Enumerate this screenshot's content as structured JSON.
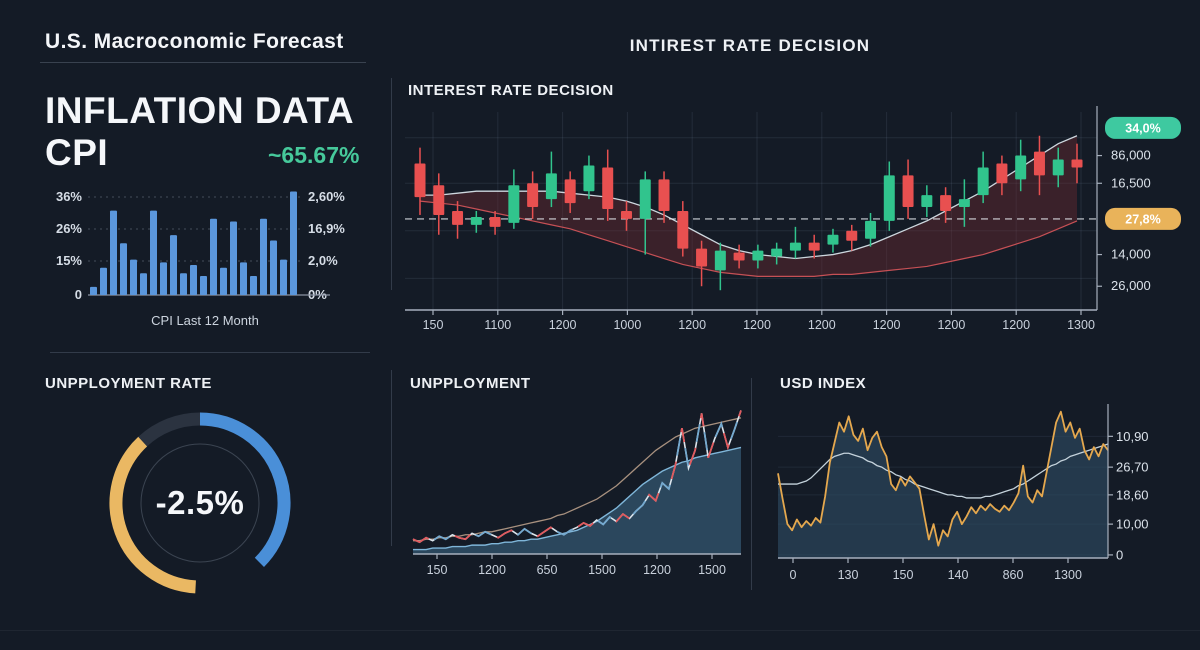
{
  "app": {
    "title": "U.S. Macroconomic Forecast",
    "top_center_title": "INTIREST RATE DECISION"
  },
  "inflation_panel": {
    "heading_line1": "INFLATION DATA",
    "heading_line2": "CPI",
    "highlight_value": "~65.67%"
  },
  "gauge_panel": {
    "title": "UNPPLOYMENT RATE",
    "center_value": "-2.5%",
    "segments": [
      {
        "name": "blue",
        "color": "#4a8fd8",
        "start_deg": 0,
        "end_deg": 135
      },
      {
        "name": "yellow",
        "color": "#eab863",
        "start_deg": 183,
        "end_deg": 317
      },
      {
        "name": "dark",
        "color": "#2b3340",
        "start_deg": 317,
        "end_deg": 360
      }
    ],
    "inner_ring_color": "#3b4451"
  },
  "colors": {
    "background": "#141b26",
    "accent_teal": "#46c99b",
    "bar_blue": "#5b97dc",
    "candle_up": "#31c48d",
    "candle_down": "#e85050",
    "badge_green": "#3ec9a0",
    "badge_orange": "#e9b35a",
    "usd_orange": "#e5a84e",
    "divider": "#323b49"
  },
  "chart_data": [
    {
      "id": "cpi_bars",
      "type": "bar",
      "title": "INFLATION DATA CPI",
      "xlabel": "CPI Last 12 Month",
      "left_ticks": [
        "36%",
        "26%",
        "15%",
        "0"
      ],
      "right_ticks": [
        "2,60%",
        "16,9%",
        "2,0%",
        "0%"
      ],
      "values": [
        3,
        10,
        31,
        19,
        13,
        8,
        31,
        12,
        22,
        8,
        11,
        7,
        28,
        10,
        27,
        12,
        7,
        28,
        20,
        13,
        38
      ],
      "ymax": 36,
      "bar_color": "#5b97dc",
      "grid": "dotted"
    },
    {
      "id": "interest_rate_candles",
      "type": "candlestick",
      "title": "INTEREST RATE DECISION",
      "x_ticks": [
        "150",
        "1100",
        "1200",
        "1000",
        "1200",
        "1200",
        "1200",
        "1200",
        "1200",
        "1200",
        "1300"
      ],
      "right_axis_labels": [
        {
          "text": "86,000",
          "value": 78
        },
        {
          "text": "16,500",
          "value": 64
        },
        {
          "text": "14,000",
          "value": 28
        },
        {
          "text": "26,000",
          "value": 12
        }
      ],
      "badges": [
        {
          "text": "34,0%",
          "value": 92,
          "color": "#3ec9a0"
        },
        {
          "text": "27,8%",
          "value": 46,
          "color": "#e9b35a"
        }
      ],
      "dashed_line_value": 46,
      "up_color": "#31c48d",
      "down_color": "#e85050",
      "band_fill": "rgba(120,45,50,0.38)",
      "band_upper_color": "#cdd7de",
      "band_lower_color": "#c65055",
      "candles": [
        [
          74,
          82,
          48,
          57
        ],
        [
          63,
          69,
          38,
          48
        ],
        [
          50,
          55,
          36,
          43
        ],
        [
          43,
          50,
          39,
          47
        ],
        [
          47,
          50,
          38,
          42
        ],
        [
          44,
          71,
          41,
          63
        ],
        [
          64,
          70,
          46,
          52
        ],
        [
          56,
          80,
          52,
          69
        ],
        [
          66,
          70,
          49,
          54
        ],
        [
          60,
          78,
          56,
          73
        ],
        [
          72,
          81,
          45,
          51
        ],
        [
          50,
          55,
          40,
          46
        ],
        [
          46,
          70,
          28,
          66
        ],
        [
          66,
          70,
          44,
          50
        ],
        [
          50,
          55,
          27,
          31
        ],
        [
          31,
          35,
          12,
          22
        ],
        [
          20,
          34,
          10,
          30
        ],
        [
          29,
          33,
          21,
          25
        ],
        [
          25,
          33,
          21,
          30
        ],
        [
          27,
          34,
          23,
          31
        ],
        [
          30,
          42,
          26,
          34
        ],
        [
          34,
          38,
          26,
          30
        ],
        [
          33,
          41,
          29,
          38
        ],
        [
          40,
          43,
          30,
          35
        ],
        [
          36,
          49,
          32,
          45
        ],
        [
          45,
          75,
          40,
          68
        ],
        [
          68,
          76,
          46,
          52
        ],
        [
          52,
          63,
          47,
          58
        ],
        [
          58,
          62,
          44,
          50
        ],
        [
          52,
          66,
          42,
          56
        ],
        [
          58,
          80,
          54,
          72
        ],
        [
          74,
          78,
          58,
          64
        ],
        [
          66,
          86,
          60,
          78
        ],
        [
          80,
          88,
          58,
          68
        ],
        [
          68,
          82,
          62,
          76
        ],
        [
          76,
          84,
          64,
          72
        ]
      ],
      "band_upper": [
        58,
        58,
        59,
        60,
        60,
        60,
        60,
        60,
        59,
        58,
        57,
        55,
        52,
        48,
        43,
        38,
        33,
        30,
        28,
        27,
        26,
        27,
        28,
        30,
        33,
        37,
        41,
        45,
        50,
        55,
        60,
        66,
        72,
        78,
        84,
        88
      ],
      "band_lower": [
        55,
        54,
        53,
        51,
        49,
        47,
        45,
        43,
        41,
        38,
        35,
        32,
        29,
        26,
        23,
        21,
        19,
        18,
        17,
        17,
        17,
        17,
        18,
        18,
        19,
        20,
        21,
        22,
        24,
        26,
        28,
        31,
        34,
        37,
        41,
        45
      ]
    },
    {
      "id": "unemployment_line",
      "type": "line",
      "title": "UNPPLOYMENT",
      "x_ticks": [
        "150",
        "1200",
        "650",
        "1500",
        "1200",
        "1500"
      ],
      "jagged": [
        10,
        8,
        11,
        9,
        12,
        10,
        13,
        11,
        10,
        14,
        12,
        15,
        13,
        11,
        14,
        16,
        13,
        17,
        14,
        12,
        15,
        18,
        15,
        13,
        16,
        18,
        21,
        19,
        23,
        20,
        25,
        22,
        27,
        24,
        29,
        33,
        40,
        36,
        48,
        44,
        60,
        85,
        58,
        70,
        95,
        65,
        78,
        88,
        72,
        84,
        97
      ],
      "trend": [
        9,
        9,
        10,
        10,
        11,
        11,
        12,
        12,
        13,
        13,
        14,
        15,
        15,
        16,
        17,
        18,
        19,
        20,
        21,
        22,
        23,
        24,
        26,
        27,
        29,
        31,
        33,
        35,
        37,
        40,
        43,
        46,
        50,
        54,
        58,
        62,
        66,
        70,
        73,
        76,
        79,
        81,
        83,
        85,
        86,
        87,
        88,
        89,
        90,
        91,
        92
      ],
      "area": [
        3,
        3,
        3,
        4,
        4,
        4,
        5,
        5,
        5,
        6,
        6,
        6,
        7,
        7,
        8,
        8,
        9,
        9,
        10,
        10,
        11,
        12,
        13,
        14,
        15,
        16,
        18,
        20,
        22,
        25,
        28,
        31,
        35,
        39,
        43,
        47,
        50,
        53,
        56,
        58,
        60,
        62,
        63,
        65,
        66,
        67,
        68,
        69,
        70,
        71,
        72
      ],
      "jagged_colors": [
        "#dde5ec",
        "#e05a5e",
        "#74a9cf"
      ],
      "trend_color": "#a8917f",
      "area_color": "rgba(62,108,138,0.55)",
      "area_line_color": "#7fb6d9"
    },
    {
      "id": "usd_index",
      "type": "area",
      "title": "USD INDEX",
      "x_ticks": [
        "0",
        "130",
        "150",
        "140",
        "860",
        "1300"
      ],
      "y_ticks": [
        {
          "text": "10,90",
          "value": 79
        },
        {
          "text": "26,70",
          "value": 59
        },
        {
          "text": "18,60",
          "value": 41
        },
        {
          "text": "10,00",
          "value": 22
        },
        {
          "text": "0",
          "value": 2
        }
      ],
      "line": [
        55,
        38,
        22,
        18,
        25,
        20,
        24,
        21,
        26,
        23,
        40,
        62,
        75,
        88,
        82,
        92,
        80,
        76,
        84,
        70,
        78,
        82,
        72,
        66,
        48,
        44,
        52,
        47,
        53,
        49,
        45,
        28,
        12,
        22,
        8,
        18,
        14,
        25,
        30,
        22,
        27,
        33,
        29,
        34,
        31,
        35,
        32,
        30,
        34,
        31,
        36,
        42,
        60,
        40,
        36,
        44,
        40,
        56,
        72,
        88,
        95,
        82,
        88,
        78,
        84,
        70,
        64,
        72,
        66,
        74,
        70
      ],
      "trend": [
        48,
        48,
        48,
        48,
        48,
        49,
        50,
        52,
        55,
        58,
        61,
        64,
        66,
        67,
        68,
        68,
        67,
        66,
        65,
        63,
        62,
        60,
        59,
        57,
        56,
        54,
        53,
        51,
        50,
        48,
        47,
        46,
        45,
        44,
        43,
        42,
        41,
        41,
        40,
        40,
        39,
        39,
        39,
        39,
        40,
        40,
        41,
        42,
        43,
        44,
        45,
        47,
        48,
        50,
        52,
        54,
        56,
        58,
        60,
        61,
        63,
        64,
        66,
        67,
        68,
        69,
        70,
        71,
        72,
        73,
        74
      ],
      "line_color": "#e5a84e",
      "trend_color": "#c4d2db",
      "area_color": "rgba(47,79,102,0.6)"
    }
  ]
}
